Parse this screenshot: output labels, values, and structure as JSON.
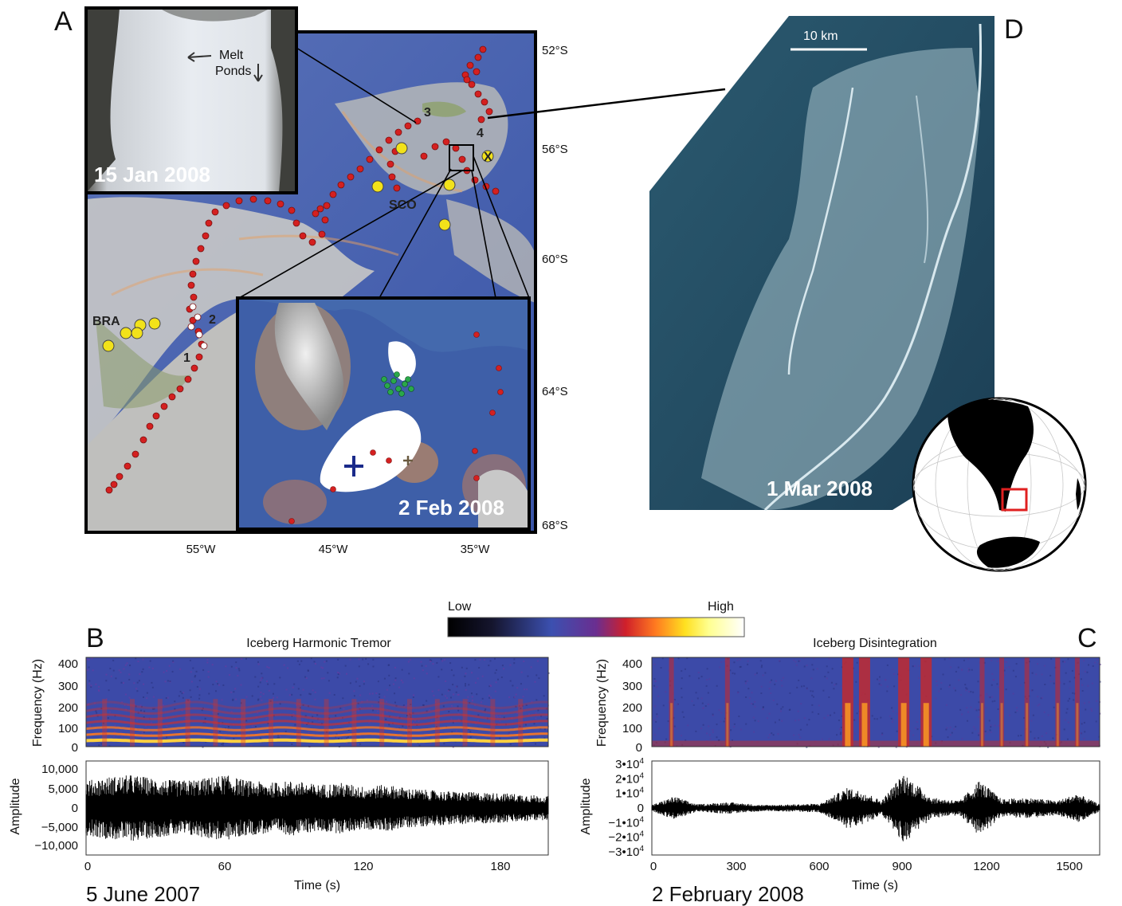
{
  "panels": {
    "a": "A",
    "b": "B",
    "c": "C",
    "d": "D"
  },
  "panel_a": {
    "lat_labels": [
      "52°S",
      "56°S",
      "60°S",
      "64°S",
      "68°S"
    ],
    "lon_labels": [
      "55°W",
      "45°W",
      "35°W"
    ],
    "inset_photo_date": "15 Jan 2008",
    "melt_ponds_line1": "Melt",
    "melt_ponds_line2": "Ponds",
    "inset_zoom_date": "2 Feb 2008",
    "station_labels": {
      "bra": "BRA",
      "sco": "SCO",
      "x": "X"
    },
    "track_markers": [
      "1",
      "2",
      "3",
      "4"
    ],
    "colors": {
      "track": "#d42020",
      "station": "#f2e21a",
      "cluster": "#2aa84a",
      "ocean": "#3d57a8",
      "land": "#c9c9c9"
    }
  },
  "panel_d": {
    "scale_bar": "10 km",
    "image_date": "1 Mar 2008"
  },
  "colorbar": {
    "low_label": "Low",
    "high_label": "High",
    "colors": [
      "#000000",
      "#1a1a3a",
      "#3b4aa8",
      "#6a3aa0",
      "#c0202a",
      "#ff6a20",
      "#ffd01a",
      "#ffff80",
      "#ffffff"
    ]
  },
  "panel_b": {
    "title": "Iceberg Harmonic Tremor",
    "date": "5 June 2007",
    "freq_ylabel": "Frequency (Hz)",
    "freq_ticks": [
      "400",
      "300",
      "200",
      "100",
      "0"
    ],
    "amp_ylabel": "Amplitude",
    "amp_ticks": [
      "10,000",
      "5,000",
      "0",
      "−5,000",
      "−10,000"
    ],
    "xlabel": "Time (s)",
    "x_ticks": [
      "0",
      "60",
      "120",
      "180"
    ]
  },
  "panel_c": {
    "title": "Iceberg Disintegration",
    "date": "2 February 2008",
    "freq_ylabel": "Frequency (Hz)",
    "freq_ticks": [
      "400",
      "300",
      "200",
      "100",
      "0"
    ],
    "amp_ylabel": "Amplitude",
    "amp_ticks": [
      "3•10",
      "2•10",
      "1•10",
      "0",
      "−1•10",
      "−2•10",
      "−3•10"
    ],
    "amp_tick_exp": "4",
    "xlabel": "Time (s)",
    "x_ticks": [
      "0",
      "300",
      "600",
      "900",
      "1200",
      "1500"
    ]
  },
  "chart_data": [
    {
      "type": "heatmap",
      "title": "Iceberg Harmonic Tremor",
      "xlabel": "Time (s)",
      "ylabel": "Frequency (Hz)",
      "xlim": [
        0,
        200
      ],
      "ylim": [
        0,
        450
      ],
      "harmonics_hz": [
        30,
        60,
        90,
        120,
        150,
        180,
        210
      ],
      "burst_times_s": [
        8,
        20,
        32,
        44,
        56,
        68,
        80,
        92,
        104,
        116,
        128,
        140,
        152,
        164,
        176,
        188
      ]
    },
    {
      "type": "line",
      "title": "",
      "xlabel": "Time (s)",
      "ylabel": "Amplitude",
      "xlim": [
        0,
        200
      ],
      "ylim": [
        -12000,
        12000
      ],
      "envelope": {
        "t": [
          0,
          10,
          20,
          30,
          40,
          50,
          60,
          70,
          80,
          90,
          100,
          110,
          120,
          130,
          140,
          150,
          160,
          170,
          180,
          190,
          200
        ],
        "amp": [
          7000,
          8000,
          8500,
          7500,
          7000,
          7500,
          8500,
          7000,
          6500,
          7000,
          6000,
          6500,
          5500,
          6000,
          5000,
          4500,
          4200,
          4000,
          3800,
          3500,
          3000
        ]
      }
    },
    {
      "type": "heatmap",
      "title": "Iceberg Disintegration",
      "xlabel": "Time (s)",
      "ylabel": "Frequency (Hz)",
      "xlim": [
        0,
        1600
      ],
      "ylim": [
        0,
        450
      ],
      "event_times_s": [
        70,
        270,
        700,
        760,
        900,
        980,
        1180,
        1250,
        1340,
        1450,
        1520
      ]
    },
    {
      "type": "line",
      "title": "",
      "xlabel": "Time (s)",
      "ylabel": "Amplitude",
      "xlim": [
        0,
        1600
      ],
      "ylim": [
        -32000,
        32000
      ],
      "envelope": {
        "t": [
          0,
          80,
          160,
          270,
          400,
          600,
          700,
          760,
          820,
          900,
          1000,
          1100,
          1170,
          1250,
          1340,
          1450,
          1520,
          1600
        ],
        "amp": [
          2000,
          8000,
          2500,
          4000,
          2000,
          3000,
          14000,
          11000,
          5000,
          24000,
          7000,
          5000,
          19000,
          6000,
          7000,
          5000,
          10000,
          2500
        ]
      }
    }
  ]
}
